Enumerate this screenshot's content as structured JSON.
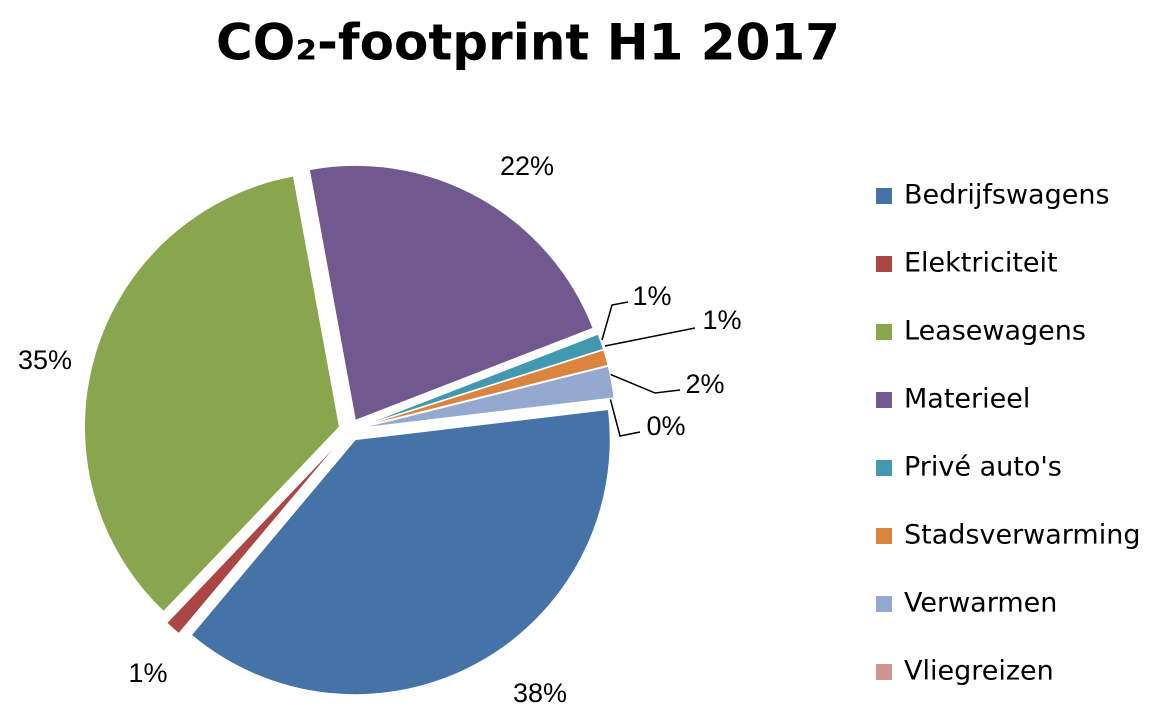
{
  "chart_data": {
    "type": "pie",
    "title": "CO₂-footprint H1 2017",
    "categories": [
      "Bedrijfswagens",
      "Elektriciteit",
      "Leasewagens",
      "Materieel",
      "Privé auto's",
      "Stadsverwarming",
      "Verwarmen",
      "Vliegreizen"
    ],
    "values": [
      38,
      1,
      35,
      22,
      1,
      1,
      2,
      0
    ],
    "value_labels": [
      "38%",
      "1%",
      "35%",
      "22%",
      "1%",
      "1%",
      "2%",
      "0%"
    ],
    "colors": [
      "#4572a7",
      "#aa4643",
      "#89a54e",
      "#71588f",
      "#4198af",
      "#db843d",
      "#93a9cf",
      "#d19392"
    ],
    "legend": "right"
  }
}
